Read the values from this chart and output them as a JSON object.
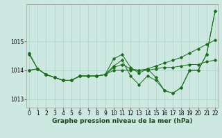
{
  "bg_color": "#cce8e0",
  "line_color": "#1a6b1a",
  "grid_color": "#aad4c8",
  "xlabel": "Graphe pression niveau de la mer (hPa)",
  "xlabel_fontsize": 6.5,
  "tick_fontsize": 5.5,
  "ylim": [
    1012.7,
    1016.3
  ],
  "xlim": [
    -0.3,
    22.3
  ],
  "yticks": [
    1013,
    1014,
    1015
  ],
  "series": [
    {
      "x": [
        0,
        1,
        2,
        3,
        4,
        5,
        6,
        7,
        8,
        9,
        10,
        11,
        12,
        13,
        14,
        15,
        16,
        17,
        18,
        19,
        20,
        21,
        22
      ],
      "y": [
        1014.6,
        1014.05,
        1013.85,
        1013.75,
        1013.65,
        1013.65,
        1013.8,
        1013.8,
        1013.8,
        1013.85,
        1014.15,
        1014.35,
        1013.8,
        1013.5,
        1013.8,
        1013.65,
        1013.3,
        1013.2,
        1013.4,
        1014.0,
        1014.0,
        1014.55,
        1016.05
      ]
    },
    {
      "x": [
        0,
        1,
        2,
        3,
        4,
        5,
        6,
        7,
        8,
        9,
        10,
        11,
        12,
        13,
        14,
        15,
        16,
        17,
        18,
        19,
        20,
        21,
        22
      ],
      "y": [
        1014.0,
        1014.05,
        1013.85,
        1013.75,
        1013.65,
        1013.65,
        1013.8,
        1013.8,
        1013.8,
        1013.85,
        1014.0,
        1014.0,
        1014.0,
        1014.0,
        1014.0,
        1014.05,
        1014.1,
        1014.1,
        1014.15,
        1014.2,
        1014.2,
        1014.3,
        1014.35
      ]
    },
    {
      "x": [
        0,
        1,
        2,
        3,
        4,
        5,
        6,
        7,
        8,
        9,
        10,
        11,
        12,
        13,
        14,
        15,
        16,
        17,
        18,
        19,
        20,
        21,
        22
      ],
      "y": [
        1014.0,
        1014.05,
        1013.85,
        1013.75,
        1013.65,
        1013.65,
        1013.8,
        1013.8,
        1013.8,
        1013.85,
        1014.1,
        1014.2,
        1014.05,
        1014.0,
        1014.05,
        1014.15,
        1014.25,
        1014.35,
        1014.45,
        1014.6,
        1014.75,
        1014.9,
        1015.05
      ]
    },
    {
      "x": [
        0,
        1,
        2,
        3,
        4,
        5,
        6,
        7,
        8,
        9,
        10,
        11,
        12,
        13,
        14,
        15,
        16,
        17,
        18,
        19,
        20,
        21,
        22
      ],
      "y": [
        1014.55,
        1014.05,
        1013.85,
        1013.75,
        1013.65,
        1013.65,
        1013.8,
        1013.8,
        1013.8,
        1013.85,
        1014.4,
        1014.55,
        1014.1,
        1013.9,
        1014.05,
        1013.75,
        1013.3,
        1013.2,
        1013.4,
        1014.0,
        1014.0,
        1014.55,
        1016.05
      ]
    }
  ]
}
